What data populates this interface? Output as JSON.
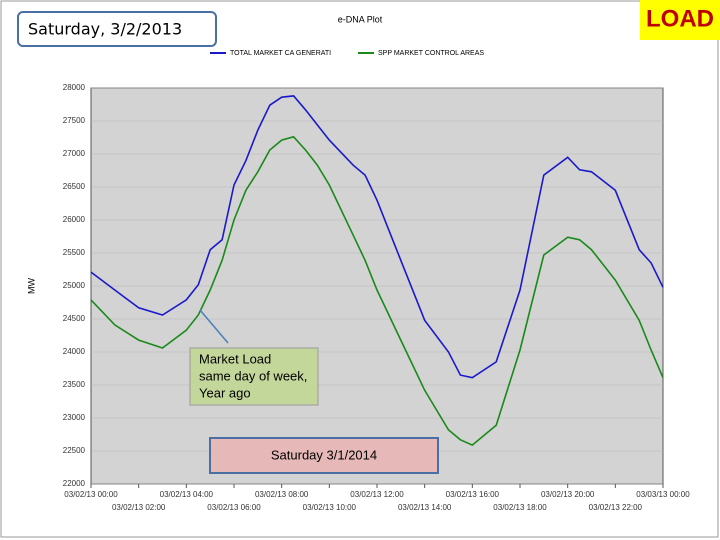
{
  "header": {
    "date": "Saturday, 3/2/2013",
    "badge": "LOAD"
  },
  "annotations": {
    "market_load": [
      "Market Load",
      "same day  of week,",
      "Year ago"
    ],
    "compare_date": "Saturday 3/1/2014"
  },
  "chart_data": {
    "type": "line",
    "title": "e-DNA Plot",
    "ylabel": "MW",
    "x": [
      0,
      1,
      2,
      3,
      4,
      4.5,
      5,
      5.5,
      6,
      6.5,
      7,
      7.5,
      8,
      8.5,
      9,
      9.5,
      10,
      11,
      11.5,
      12,
      13,
      14,
      15,
      15.5,
      16,
      17,
      18,
      19,
      20,
      20.5,
      21,
      22,
      23,
      23.5,
      24
    ],
    "series": [
      {
        "name": "TOTAL MARKET CA GENERATI",
        "color": "#1a1acc",
        "values": [
          25210,
          24940,
          24670,
          24560,
          24790,
          25020,
          25550,
          25700,
          26530,
          26900,
          27360,
          27740,
          27860,
          27880,
          27670,
          27440,
          27210,
          26830,
          26680,
          26300,
          25390,
          24480,
          24000,
          23650,
          23610,
          23850,
          24940,
          26680,
          26950,
          26760,
          26730,
          26450,
          25550,
          25350,
          24980
        ]
      },
      {
        "name": "SPP MARKET CONTROL AREAS",
        "color": "#1a8a1a",
        "values": [
          24790,
          24410,
          24180,
          24060,
          24330,
          24560,
          24940,
          25390,
          26000,
          26450,
          26730,
          27060,
          27210,
          27260,
          27060,
          26830,
          26530,
          25770,
          25390,
          24940,
          24180,
          23420,
          22820,
          22670,
          22590,
          22890,
          24030,
          25470,
          25740,
          25700,
          25550,
          25090,
          24480,
          24030,
          23610
        ]
      }
    ],
    "xlim": [
      0,
      24
    ],
    "xticks": [
      {
        "value": 0,
        "label": "03/02/13 00:00"
      },
      {
        "value": 2,
        "label": "03/02/13 02:00"
      },
      {
        "value": 4,
        "label": "03/02/13 04:00"
      },
      {
        "value": 6,
        "label": "03/02/13 06:00"
      },
      {
        "value": 8,
        "label": "03/02/13 08:00"
      },
      {
        "value": 10,
        "label": "03/02/13 10:00"
      },
      {
        "value": 12,
        "label": "03/02/13 12:00"
      },
      {
        "value": 14,
        "label": "03/02/13 14:00"
      },
      {
        "value": 16,
        "label": "03/02/13 16:00"
      },
      {
        "value": 18,
        "label": "03/02/13 18:00"
      },
      {
        "value": 20,
        "label": "03/02/13 20:00"
      },
      {
        "value": 22,
        "label": "03/02/13 22:00"
      },
      {
        "value": 24,
        "label": "03/03/13 00:00"
      }
    ],
    "ylim": [
      22000,
      28000
    ],
    "yticks": [
      22000,
      22500,
      23000,
      23500,
      24000,
      24500,
      25000,
      25500,
      26000,
      26500,
      27000,
      27500,
      28000
    ],
    "grid": true
  }
}
